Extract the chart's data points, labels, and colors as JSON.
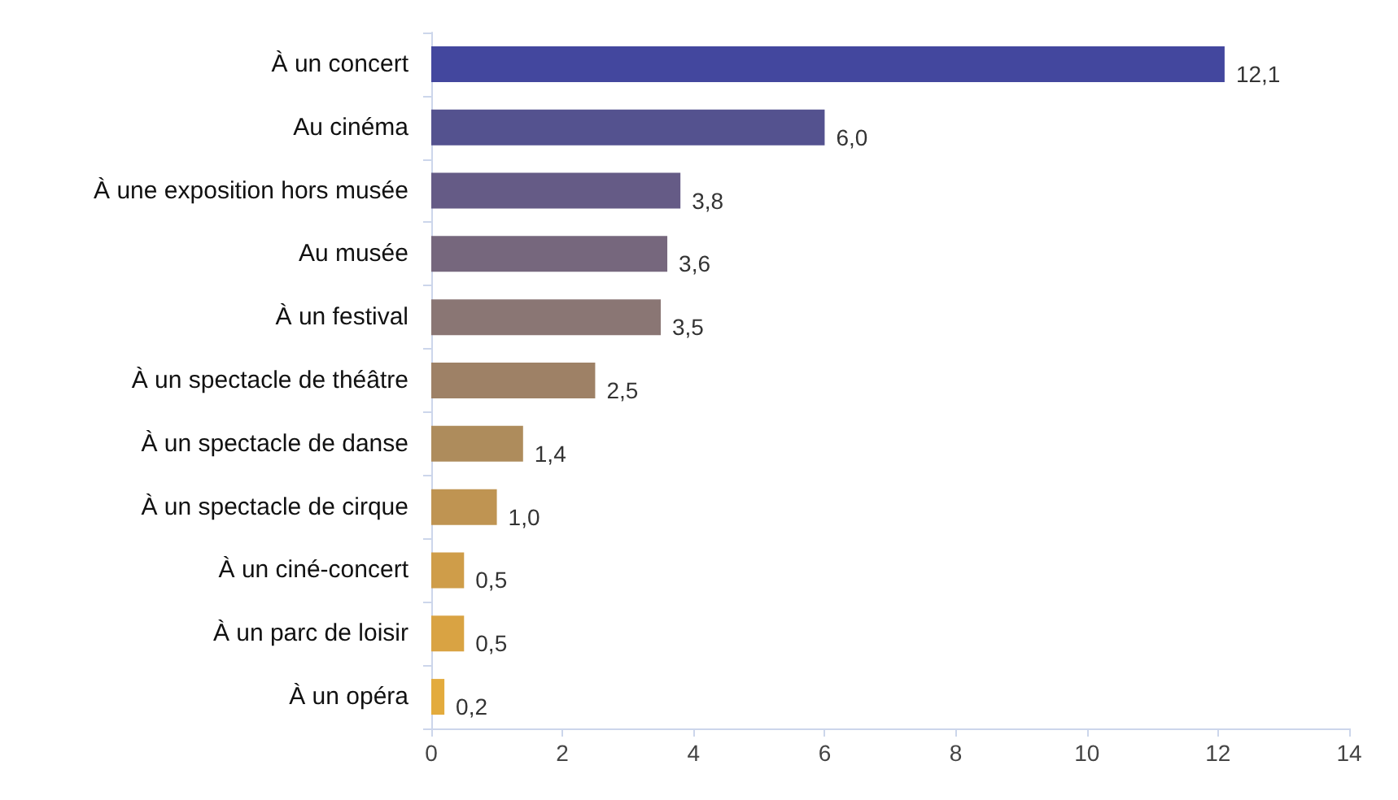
{
  "chart_data": {
    "type": "bar",
    "orientation": "horizontal",
    "categories": [
      "À un concert",
      "Au cinéma",
      "À une exposition hors musée",
      "Au musée",
      "À un festival",
      "À un spectacle de théâtre",
      "À un spectacle de danse",
      "À un spectacle de cirque",
      "À un ciné-concert",
      "À un parc de loisir",
      "À un opéra"
    ],
    "values": [
      12.1,
      6.0,
      3.8,
      3.6,
      3.5,
      2.5,
      1.4,
      1.0,
      0.5,
      0.5,
      0.2
    ],
    "value_labels": [
      "12,1",
      "6,0",
      "3,8",
      "3,6",
      "3,5",
      "2,5",
      "1,4",
      "1,0",
      "0,5",
      "0,5",
      "0,2"
    ],
    "colors": [
      "#43479e",
      "#54528f",
      "#655b86",
      "#76677d",
      "#8a7674",
      "#9e8166",
      "#ae8c5c",
      "#bf9452",
      "#cf9d49",
      "#d9a343",
      "#e3ab3d"
    ],
    "xlim": [
      0,
      14
    ],
    "xticks": [
      0,
      2,
      4,
      6,
      8,
      10,
      12,
      14
    ],
    "grid": false
  }
}
